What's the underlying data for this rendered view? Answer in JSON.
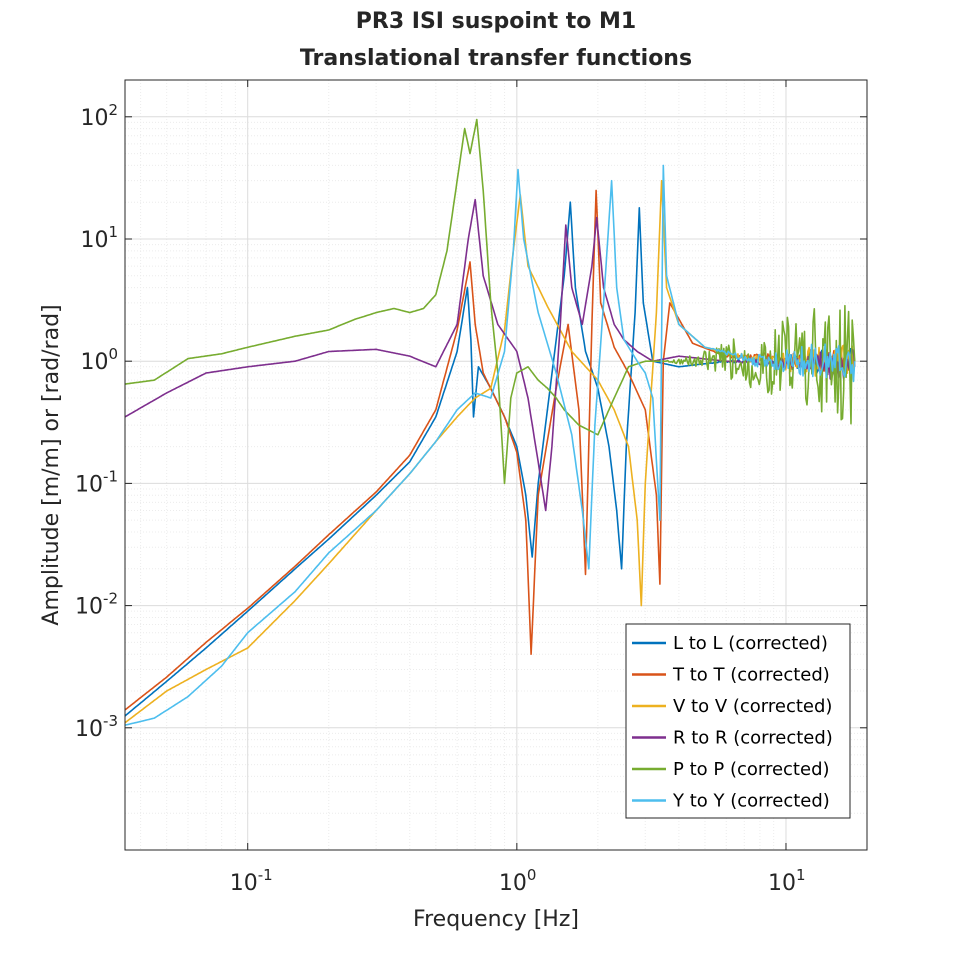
{
  "chart_data": {
    "type": "line",
    "title": "PR3 ISI suspoint to M1",
    "subtitle": "Translational transfer functions",
    "xlabel": "Frequency [Hz]",
    "ylabel": "Amplitude [m/m] or [rad/rad]",
    "xscale": "log",
    "yscale": "log",
    "xlim": [
      0.035,
      20
    ],
    "ylim": [
      0.0001,
      200
    ],
    "grid": true,
    "minor_grid": true,
    "legend_position": "bottom-right",
    "x_ticks": [
      {
        "base": "10",
        "exp": "-1",
        "value": 0.1
      },
      {
        "base": "10",
        "exp": "0",
        "value": 1
      },
      {
        "base": "10",
        "exp": "1",
        "value": 10
      }
    ],
    "y_ticks": [
      {
        "base": "10",
        "exp": "-3",
        "value": 0.001
      },
      {
        "base": "10",
        "exp": "-2",
        "value": 0.01
      },
      {
        "base": "10",
        "exp": "-1",
        "value": 0.1
      },
      {
        "base": "10",
        "exp": "0",
        "value": 1
      },
      {
        "base": "10",
        "exp": "1",
        "value": 10
      },
      {
        "base": "10",
        "exp": "2",
        "value": 100
      }
    ],
    "series": [
      {
        "name": "L to L (corrected)",
        "color": "#0072BD",
        "noise": 0.12,
        "noise_start": 5,
        "points": [
          [
            0.035,
            0.00125
          ],
          [
            0.05,
            0.0024
          ],
          [
            0.07,
            0.0045
          ],
          [
            0.1,
            0.009
          ],
          [
            0.15,
            0.02
          ],
          [
            0.2,
            0.035
          ],
          [
            0.3,
            0.08
          ],
          [
            0.4,
            0.15
          ],
          [
            0.5,
            0.35
          ],
          [
            0.6,
            1.2
          ],
          [
            0.655,
            4
          ],
          [
            0.675,
            1.5
          ],
          [
            0.69,
            0.35
          ],
          [
            0.72,
            0.9
          ],
          [
            0.8,
            0.6
          ],
          [
            0.9,
            0.35
          ],
          [
            1.0,
            0.2
          ],
          [
            1.08,
            0.08
          ],
          [
            1.14,
            0.025
          ],
          [
            1.2,
            0.1
          ],
          [
            1.4,
            1.5
          ],
          [
            1.5,
            5
          ],
          [
            1.58,
            20
          ],
          [
            1.65,
            4
          ],
          [
            1.8,
            1.2
          ],
          [
            2.0,
            0.6
          ],
          [
            2.2,
            0.2
          ],
          [
            2.35,
            0.06
          ],
          [
            2.45,
            0.02
          ],
          [
            2.55,
            0.2
          ],
          [
            2.75,
            2.5
          ],
          [
            2.85,
            18
          ],
          [
            2.95,
            3
          ],
          [
            3.2,
            1.0
          ],
          [
            4,
            0.9
          ],
          [
            6,
            1.0
          ],
          [
            18,
            1.0
          ]
        ]
      },
      {
        "name": "T to T (corrected)",
        "color": "#D95319",
        "noise": 0.12,
        "noise_start": 5,
        "points": [
          [
            0.035,
            0.0014
          ],
          [
            0.05,
            0.0026
          ],
          [
            0.07,
            0.005
          ],
          [
            0.1,
            0.0095
          ],
          [
            0.15,
            0.021
          ],
          [
            0.2,
            0.038
          ],
          [
            0.3,
            0.085
          ],
          [
            0.4,
            0.17
          ],
          [
            0.5,
            0.4
          ],
          [
            0.6,
            1.8
          ],
          [
            0.67,
            6.5
          ],
          [
            0.7,
            2
          ],
          [
            0.75,
            0.8
          ],
          [
            0.9,
            0.35
          ],
          [
            1.0,
            0.18
          ],
          [
            1.08,
            0.05
          ],
          [
            1.13,
            0.004
          ],
          [
            1.2,
            0.08
          ],
          [
            1.4,
            0.6
          ],
          [
            1.55,
            2
          ],
          [
            1.7,
            0.4
          ],
          [
            1.8,
            0.018
          ],
          [
            1.9,
            2
          ],
          [
            1.97,
            25
          ],
          [
            2.05,
            3
          ],
          [
            2.3,
            1.3
          ],
          [
            2.6,
            0.8
          ],
          [
            3.0,
            0.4
          ],
          [
            3.3,
            0.08
          ],
          [
            3.4,
            0.015
          ],
          [
            3.5,
            1
          ],
          [
            3.7,
            3.0
          ],
          [
            4.5,
            1.4
          ],
          [
            6,
            1.1
          ],
          [
            18,
            1.0
          ]
        ]
      },
      {
        "name": "V to V (corrected)",
        "color": "#EDB120",
        "noise": 0.15,
        "noise_start": 5,
        "points": [
          [
            0.035,
            0.0011
          ],
          [
            0.05,
            0.002
          ],
          [
            0.07,
            0.003
          ],
          [
            0.1,
            0.0045
          ],
          [
            0.15,
            0.011
          ],
          [
            0.2,
            0.022
          ],
          [
            0.3,
            0.06
          ],
          [
            0.4,
            0.12
          ],
          [
            0.5,
            0.22
          ],
          [
            0.6,
            0.35
          ],
          [
            0.7,
            0.5
          ],
          [
            0.8,
            0.6
          ],
          [
            0.9,
            1.8
          ],
          [
            0.97,
            8
          ],
          [
            1.03,
            23
          ],
          [
            1.1,
            6
          ],
          [
            1.3,
            2.8
          ],
          [
            1.6,
            1.2
          ],
          [
            2.0,
            0.7
          ],
          [
            2.3,
            0.4
          ],
          [
            2.6,
            0.2
          ],
          [
            2.8,
            0.05
          ],
          [
            2.9,
            0.01
          ],
          [
            3.0,
            0.1
          ],
          [
            3.3,
            2.5
          ],
          [
            3.45,
            30
          ],
          [
            3.6,
            4
          ],
          [
            4,
            2
          ],
          [
            5,
            1.3
          ],
          [
            8,
            1.0
          ],
          [
            18,
            1.0
          ]
        ]
      },
      {
        "name": "R to R (corrected)",
        "color": "#7E2F8E",
        "noise": 0.15,
        "noise_start": 6,
        "points": [
          [
            0.035,
            0.35
          ],
          [
            0.05,
            0.55
          ],
          [
            0.07,
            0.8
          ],
          [
            0.1,
            0.9
          ],
          [
            0.15,
            1.0
          ],
          [
            0.2,
            1.2
          ],
          [
            0.3,
            1.25
          ],
          [
            0.4,
            1.1
          ],
          [
            0.5,
            0.9
          ],
          [
            0.6,
            2
          ],
          [
            0.66,
            10
          ],
          [
            0.7,
            21
          ],
          [
            0.75,
            5
          ],
          [
            0.85,
            2
          ],
          [
            1.0,
            1.2
          ],
          [
            1.1,
            0.5
          ],
          [
            1.2,
            0.15
          ],
          [
            1.28,
            0.06
          ],
          [
            1.35,
            0.2
          ],
          [
            1.45,
            2
          ],
          [
            1.52,
            13
          ],
          [
            1.6,
            4
          ],
          [
            1.75,
            2
          ],
          [
            1.9,
            6
          ],
          [
            1.98,
            15
          ],
          [
            2.1,
            4
          ],
          [
            2.3,
            2
          ],
          [
            2.5,
            1.5
          ],
          [
            2.8,
            1.2
          ],
          [
            3.2,
            1.0
          ],
          [
            4,
            1.1
          ],
          [
            6,
            1.0
          ],
          [
            18,
            0.9
          ]
        ]
      },
      {
        "name": "P to P (corrected)",
        "color": "#77AC30",
        "noise": 0.55,
        "noise_start": 3.5,
        "points": [
          [
            0.035,
            0.65
          ],
          [
            0.045,
            0.7
          ],
          [
            0.06,
            1.05
          ],
          [
            0.08,
            1.15
          ],
          [
            0.1,
            1.3
          ],
          [
            0.15,
            1.6
          ],
          [
            0.2,
            1.8
          ],
          [
            0.25,
            2.2
          ],
          [
            0.3,
            2.5
          ],
          [
            0.35,
            2.7
          ],
          [
            0.4,
            2.5
          ],
          [
            0.45,
            2.7
          ],
          [
            0.5,
            3.5
          ],
          [
            0.55,
            8
          ],
          [
            0.6,
            30
          ],
          [
            0.64,
            80
          ],
          [
            0.67,
            50
          ],
          [
            0.71,
            95
          ],
          [
            0.75,
            25
          ],
          [
            0.8,
            3
          ],
          [
            0.85,
            0.8
          ],
          [
            0.9,
            0.1
          ],
          [
            0.95,
            0.5
          ],
          [
            1.0,
            0.8
          ],
          [
            1.1,
            0.9
          ],
          [
            1.2,
            0.7
          ],
          [
            1.3,
            0.6
          ],
          [
            1.4,
            0.5
          ],
          [
            1.5,
            0.4
          ],
          [
            1.7,
            0.3
          ],
          [
            2.0,
            0.25
          ],
          [
            2.3,
            0.5
          ],
          [
            2.6,
            0.9
          ],
          [
            3.0,
            1.0
          ],
          [
            4,
            1.0
          ],
          [
            6,
            1.0
          ],
          [
            18,
            1.0
          ]
        ]
      },
      {
        "name": "Y to Y (corrected)",
        "color": "#4DBEEE",
        "noise": 0.18,
        "noise_start": 5,
        "points": [
          [
            0.035,
            0.00105
          ],
          [
            0.045,
            0.0012
          ],
          [
            0.06,
            0.0018
          ],
          [
            0.08,
            0.0032
          ],
          [
            0.1,
            0.006
          ],
          [
            0.15,
            0.013
          ],
          [
            0.2,
            0.027
          ],
          [
            0.3,
            0.06
          ],
          [
            0.4,
            0.12
          ],
          [
            0.5,
            0.22
          ],
          [
            0.6,
            0.4
          ],
          [
            0.7,
            0.55
          ],
          [
            0.8,
            0.5
          ],
          [
            0.9,
            1.2
          ],
          [
            0.97,
            8
          ],
          [
            1.01,
            37
          ],
          [
            1.06,
            10
          ],
          [
            1.2,
            2.5
          ],
          [
            1.4,
            0.8
          ],
          [
            1.6,
            0.25
          ],
          [
            1.75,
            0.06
          ],
          [
            1.85,
            0.02
          ],
          [
            1.95,
            0.3
          ],
          [
            2.1,
            3
          ],
          [
            2.25,
            30
          ],
          [
            2.35,
            4
          ],
          [
            2.5,
            1.5
          ],
          [
            2.8,
            1.0
          ],
          [
            3.0,
            0.8
          ],
          [
            3.2,
            0.5
          ],
          [
            3.4,
            0.05
          ],
          [
            3.5,
            40
          ],
          [
            3.6,
            5
          ],
          [
            4,
            2
          ],
          [
            5,
            1.3
          ],
          [
            8,
            1.0
          ],
          [
            18,
            1.0
          ]
        ]
      }
    ]
  }
}
